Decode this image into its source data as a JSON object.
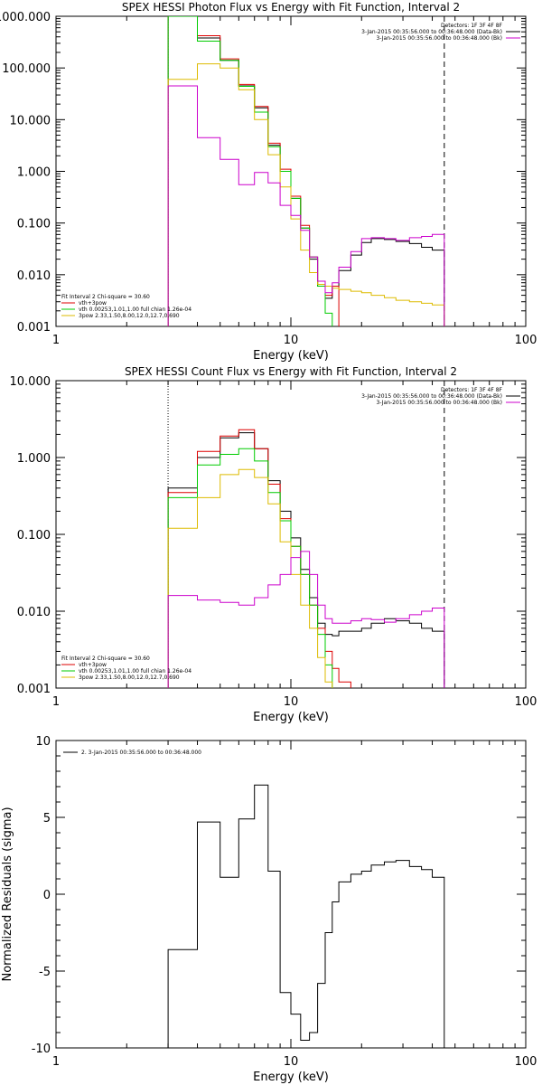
{
  "chart_data": [
    {
      "type": "line",
      "title": "SPEX HESSI Photon Flux vs Energy with Fit Function, Interval 2",
      "xlabel": "Energy (keV)",
      "ylabel": "",
      "x_scale": "log",
      "y_scale": "log",
      "xlim": [
        1,
        100
      ],
      "ylim": [
        0.001,
        1000
      ],
      "x_ticks": [
        "1",
        "10",
        "100"
      ],
      "y_ticks": [
        "0.001",
        "0.010",
        "0.100",
        "1.000",
        "10.000",
        "100.000",
        "1000.000"
      ],
      "legend_top_right": [
        "Detectors: 1F 3F 4F 8F",
        "3-Jan-2015 00:35:56.000 to 00:36:48.000 (Data-Bk)",
        "3-Jan-2015 00:35:56.000 to 00:36:48.000 (Bk)"
      ],
      "legend_bottom_left": [
        "Fit Interval 2   Chi-square = 30.60",
        "vth+3pow",
        "vth 0.00253,1.01,1.00  full chian 1.26e-04",
        "3pow 2.33,1.50,8.00,12.0,12.7,0.690"
      ],
      "vlines": [
        {
          "x": 3.0,
          "style": "dotted"
        },
        {
          "x": 45.0,
          "style": "dashed"
        }
      ],
      "bin_edges": [
        3.0,
        4.0,
        5.0,
        6.0,
        7.0,
        8.0,
        9.0,
        10.0,
        11.0,
        12.0,
        13.0,
        14.0,
        15.0,
        16.0,
        18.0,
        20.0,
        22.0,
        25.0,
        28.0,
        32.0,
        36.0,
        40.0,
        45.0
      ],
      "series": [
        {
          "color": "#000000",
          "values": [
            1000,
            380,
            140,
            45,
            17,
            3.2,
            1.0,
            0.3,
            0.08,
            0.02,
            0.006,
            0.0035,
            0.006,
            0.012,
            0.024,
            0.042,
            0.05,
            0.048,
            0.044,
            0.04,
            0.034,
            0.03
          ]
        },
        {
          "color": "#dd0000",
          "values": [
            1000,
            420,
            150,
            48,
            18,
            3.5,
            1.1,
            0.33,
            0.09,
            0.022,
            0.0065,
            0.004,
            0.006
          ]
        },
        {
          "color": "#00cc00",
          "values": [
            1000,
            330,
            140,
            44,
            14,
            3.0,
            1.0,
            0.3,
            0.08,
            0.022,
            0.006,
            0.0018,
            0.0005
          ]
        },
        {
          "color": "#ddbb00",
          "values": [
            60,
            120,
            100,
            38,
            10,
            2.1,
            0.5,
            0.12,
            0.03,
            0.011,
            0.0065,
            0.006,
            0.0055,
            0.0052,
            0.0048,
            0.0045,
            0.004,
            0.0036,
            0.0032,
            0.003,
            0.0028,
            0.0026
          ]
        },
        {
          "color": "#cc00cc",
          "values": [
            45,
            4.5,
            1.7,
            0.55,
            0.95,
            0.6,
            0.22,
            0.14,
            0.072,
            0.022,
            0.0075,
            0.0045,
            0.007,
            0.014,
            0.028,
            0.05,
            0.052,
            0.05,
            0.046,
            0.052,
            0.055,
            0.06
          ]
        }
      ]
    },
    {
      "type": "line",
      "title": "SPEX HESSI Count Flux vs Energy with Fit Function, Interval 2",
      "xlabel": "Energy (keV)",
      "ylabel": "",
      "x_scale": "log",
      "y_scale": "log",
      "xlim": [
        1,
        100
      ],
      "ylim": [
        0.001,
        10
      ],
      "x_ticks": [
        "1",
        "10",
        "100"
      ],
      "y_ticks": [
        "0.001",
        "0.010",
        "0.100",
        "1.000",
        "10.000"
      ],
      "legend_top_right": [
        "Detectors: 1F 3F 4F 8F",
        "3-Jan-2015 00:35:56.000 to 00:36:48.000 (Data-Bk)",
        "3-Jan-2015 00:35:56.000 to 00:36:48.000 (Bk)"
      ],
      "legend_bottom_left": [
        "Fit Interval 2   Chi-square = 30.60",
        "vth+3pow",
        "vth 0.00253,1.01,1.00  full chian 1.26e-04",
        "3pow 2.33,1.50,8.00,12.0,12.7,0.690"
      ],
      "vlines": [
        {
          "x": 3.0,
          "style": "dotted"
        },
        {
          "x": 45.0,
          "style": "dashed"
        }
      ],
      "bin_edges": [
        3.0,
        4.0,
        5.0,
        6.0,
        7.0,
        8.0,
        9.0,
        10.0,
        11.0,
        12.0,
        13.0,
        14.0,
        15.0,
        16.0,
        18.0,
        20.0,
        22.0,
        25.0,
        28.0,
        32.0,
        36.0,
        40.0,
        45.0
      ],
      "series": [
        {
          "color": "#000000",
          "values": [
            0.4,
            1.0,
            1.8,
            2.1,
            1.3,
            0.5,
            0.2,
            0.09,
            0.035,
            0.015,
            0.007,
            0.005,
            0.0048,
            0.0055,
            0.0055,
            0.006,
            0.007,
            0.008,
            0.0075,
            0.007,
            0.006,
            0.0055
          ]
        },
        {
          "color": "#dd0000",
          "values": [
            0.35,
            1.2,
            1.9,
            2.3,
            1.3,
            0.45,
            0.16,
            0.07,
            0.03,
            0.012,
            0.006,
            0.003,
            0.0018,
            0.0012,
            0.0008
          ]
        },
        {
          "color": "#00cc00",
          "values": [
            0.3,
            0.8,
            1.1,
            1.3,
            0.9,
            0.35,
            0.15,
            0.07,
            0.03,
            0.012,
            0.005,
            0.002,
            0.0008
          ]
        },
        {
          "color": "#ddbb00",
          "values": [
            0.12,
            0.3,
            0.6,
            0.7,
            0.55,
            0.25,
            0.08,
            0.03,
            0.012,
            0.006,
            0.0025,
            0.0012,
            0.0007
          ]
        },
        {
          "color": "#cc00cc",
          "values": [
            0.016,
            0.014,
            0.013,
            0.012,
            0.015,
            0.022,
            0.03,
            0.05,
            0.06,
            0.03,
            0.012,
            0.008,
            0.007,
            0.007,
            0.0075,
            0.008,
            0.0078,
            0.0072,
            0.008,
            0.009,
            0.01,
            0.011
          ]
        }
      ]
    },
    {
      "type": "line",
      "title": "",
      "xlabel": "Energy (keV)",
      "ylabel": "Normalized Residuals (sigma)",
      "x_scale": "log",
      "y_scale": "linear",
      "xlim": [
        1,
        100
      ],
      "ylim": [
        -10,
        10
      ],
      "x_ticks": [
        "1",
        "10",
        "100"
      ],
      "y_ticks": [
        "-10",
        "-5",
        "0",
        "5",
        "10"
      ],
      "legend_top_left": [
        "2.  3-Jan-2015 00:35:56.000 to 00:36:48.000"
      ],
      "bin_edges": [
        3.0,
        4.0,
        5.0,
        6.0,
        7.0,
        8.0,
        9.0,
        10.0,
        11.0,
        12.0,
        13.0,
        14.0,
        15.0,
        16.0,
        18.0,
        20.0,
        22.0,
        25.0,
        28.0,
        32.0,
        36.0,
        40.0,
        45.0
      ],
      "series": [
        {
          "color": "#000000",
          "values": [
            -3.6,
            4.7,
            1.1,
            4.9,
            7.1,
            1.5,
            -6.4,
            -7.8,
            -9.5,
            -9.0,
            -5.8,
            -2.5,
            -0.5,
            0.8,
            1.3,
            1.5,
            1.9,
            2.1,
            2.2,
            1.8,
            1.6,
            1.1
          ]
        }
      ]
    }
  ]
}
